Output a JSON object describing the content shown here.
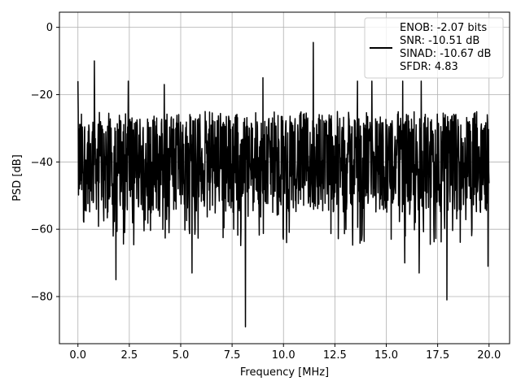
{
  "chart_data": {
    "type": "line",
    "title": "",
    "xlabel": "Frequency [MHz]",
    "ylabel": "PSD [dB]",
    "xlim": [
      -0.9,
      21.0
    ],
    "ylim": [
      -94,
      4.5
    ],
    "grid": true,
    "legend_placement": "top-right",
    "xticks": [
      0.0,
      2.5,
      5.0,
      7.5,
      10.0,
      12.5,
      15.0,
      17.5,
      20.0
    ],
    "xtick_labels": [
      "0.0",
      "2.5",
      "5.0",
      "7.5",
      "10.0",
      "12.5",
      "15.0",
      "17.5",
      "20.0"
    ],
    "yticks": [
      0,
      -20,
      -40,
      -60,
      -80
    ],
    "ytick_labels": [
      "0",
      "−20",
      "−40",
      "−60",
      "−80"
    ],
    "legend": {
      "line_color": "#000000",
      "lines": [
        "ENOB: -2.07 bits",
        "SNR: -10.51 dB",
        "SINAD: -10.67 dB",
        "SFDR: 4.83"
      ]
    },
    "series": [
      {
        "color": "#000000",
        "x_range": [
          0.0,
          20.0
        ],
        "samples": 1400,
        "noise_band": [
          -55,
          -25
        ],
        "peaks": [
          {
            "x": 0.0,
            "y": -16
          },
          {
            "x": 0.8,
            "y": -10
          },
          {
            "x": 2.45,
            "y": -16
          },
          {
            "x": 4.2,
            "y": -17
          },
          {
            "x": 9.0,
            "y": -15
          },
          {
            "x": 11.45,
            "y": -4.5
          },
          {
            "x": 13.6,
            "y": -16
          },
          {
            "x": 14.3,
            "y": -16
          },
          {
            "x": 15.8,
            "y": -16
          },
          {
            "x": 16.7,
            "y": -16
          }
        ],
        "dips": [
          {
            "x": 8.15,
            "y": -89
          },
          {
            "x": 17.95,
            "y": -81
          },
          {
            "x": 1.85,
            "y": -75
          },
          {
            "x": 5.55,
            "y": -73
          },
          {
            "x": 16.6,
            "y": -73
          },
          {
            "x": 19.95,
            "y": -71
          },
          {
            "x": 15.9,
            "y": -70
          }
        ]
      }
    ]
  }
}
